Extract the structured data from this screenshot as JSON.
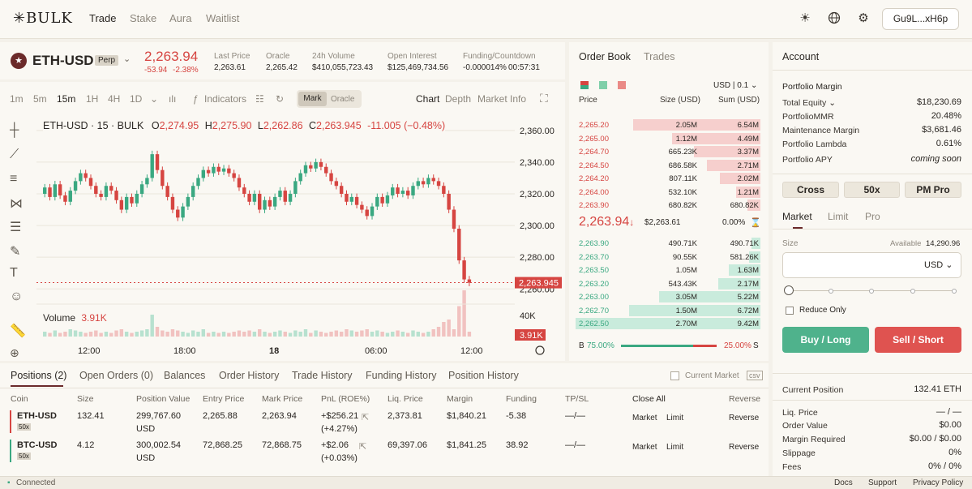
{
  "brand": {
    "logo": "✳BULK"
  },
  "nav": {
    "items": [
      "Trade",
      "Stake",
      "Aura",
      "Waitlist"
    ]
  },
  "header": {
    "wallet": "Gu9L...xH6p"
  },
  "market": {
    "symbol": "ETH-USD",
    "type": "Perp",
    "price": "2,263.94",
    "change": "-53.94",
    "change_pct": "-2.38%",
    "stats": [
      {
        "label": "Last Price",
        "value": "2,263.61"
      },
      {
        "label": "Oracle",
        "value": "2,265.42"
      },
      {
        "label": "24h Volume",
        "value": "$410,055,723.43"
      },
      {
        "label": "Open Interest",
        "value": "$125,469,734.56"
      },
      {
        "label": "Funding/Countdown",
        "value": "-0.000014%",
        "value2": "00:57:31"
      }
    ]
  },
  "chart_toolbar": {
    "timeframes": [
      "1m",
      "5m",
      "15m",
      "1H",
      "4H",
      "1D"
    ],
    "indicators": "Indicators",
    "toggle": [
      "Mark",
      "Oracle"
    ],
    "views": [
      "Chart",
      "Depth",
      "Market Info"
    ]
  },
  "chart_data": {
    "type": "candlestick",
    "title": "ETH-USD · 15 · BULK",
    "ohlc": {
      "O": "2,274.95",
      "H": "2,275.90",
      "L": "2,262.86",
      "C": "2,263.945",
      "chg": "-11.005 (−0.48%)"
    },
    "y_ticks": [
      "2,360.00",
      "2,340.00",
      "2,320.00",
      "2,300.00",
      "2,280.00",
      "2,260.00"
    ],
    "x_ticks": [
      "12:00",
      "18:00",
      "18",
      "06:00",
      "12:00"
    ],
    "ylim": [
      2254,
      2364
    ],
    "current_price": "2,263.945",
    "volume_label": "Volume",
    "volume_value": "3.91K",
    "volume_axis": "40K",
    "volume_badge": "3.91K",
    "candles": [
      [
        2320,
        2324
      ],
      [
        2324,
        2318
      ],
      [
        2318,
        2326
      ],
      [
        2326,
        2319
      ],
      [
        2319,
        2315
      ],
      [
        2315,
        2322
      ],
      [
        2322,
        2328
      ],
      [
        2328,
        2333
      ],
      [
        2333,
        2330
      ],
      [
        2330,
        2325
      ],
      [
        2325,
        2320
      ],
      [
        2320,
        2318
      ],
      [
        2318,
        2325
      ],
      [
        2325,
        2322
      ],
      [
        2322,
        2316
      ],
      [
        2316,
        2310
      ],
      [
        2310,
        2318
      ],
      [
        2318,
        2314
      ],
      [
        2314,
        2320
      ],
      [
        2320,
        2326
      ],
      [
        2326,
        2330
      ],
      [
        2330,
        2345
      ],
      [
        2345,
        2335
      ],
      [
        2335,
        2325
      ],
      [
        2325,
        2318
      ],
      [
        2318,
        2310
      ],
      [
        2310,
        2305
      ],
      [
        2305,
        2312
      ],
      [
        2312,
        2318
      ],
      [
        2318,
        2325
      ],
      [
        2325,
        2330
      ],
      [
        2330,
        2335
      ],
      [
        2335,
        2333
      ],
      [
        2333,
        2337
      ],
      [
        2337,
        2334
      ],
      [
        2334,
        2336
      ],
      [
        2336,
        2333
      ],
      [
        2333,
        2330
      ],
      [
        2330,
        2324
      ],
      [
        2324,
        2320
      ],
      [
        2320,
        2315
      ],
      [
        2315,
        2320
      ],
      [
        2320,
        2310
      ],
      [
        2310,
        2316
      ],
      [
        2316,
        2312
      ],
      [
        2312,
        2318
      ],
      [
        2318,
        2322
      ],
      [
        2322,
        2315
      ],
      [
        2315,
        2320
      ],
      [
        2320,
        2328
      ],
      [
        2328,
        2333
      ],
      [
        2333,
        2338
      ],
      [
        2338,
        2336
      ],
      [
        2336,
        2340
      ],
      [
        2340,
        2337
      ],
      [
        2337,
        2333
      ],
      [
        2333,
        2328
      ],
      [
        2328,
        2325
      ],
      [
        2325,
        2320
      ],
      [
        2320,
        2315
      ],
      [
        2315,
        2318
      ],
      [
        2318,
        2313
      ],
      [
        2313,
        2310
      ],
      [
        2310,
        2306
      ],
      [
        2306,
        2312
      ],
      [
        2312,
        2318
      ],
      [
        2318,
        2314
      ],
      [
        2314,
        2319
      ],
      [
        2319,
        2324
      ],
      [
        2324,
        2320
      ],
      [
        2320,
        2322
      ],
      [
        2322,
        2319
      ],
      [
        2319,
        2325
      ],
      [
        2325,
        2328
      ],
      [
        2328,
        2326
      ],
      [
        2326,
        2330
      ],
      [
        2330,
        2328
      ],
      [
        2328,
        2325
      ],
      [
        2325,
        2320
      ],
      [
        2320,
        2310
      ],
      [
        2310,
        2298
      ],
      [
        2298,
        2278
      ],
      [
        2278,
        2266
      ],
      [
        2266,
        2263.9
      ]
    ],
    "volumes": [
      4,
      3,
      5,
      3,
      4,
      6,
      5,
      4,
      3,
      4,
      5,
      3,
      4,
      3,
      5,
      6,
      4,
      3,
      4,
      5,
      6,
      18,
      8,
      5,
      4,
      6,
      5,
      4,
      3,
      5,
      4,
      6,
      3,
      4,
      3,
      4,
      3,
      4,
      5,
      4,
      5,
      4,
      6,
      4,
      3,
      4,
      5,
      4,
      3,
      5,
      4,
      6,
      3,
      5,
      4,
      3,
      4,
      5,
      4,
      6,
      5,
      4,
      5,
      6,
      4,
      5,
      4,
      3,
      4,
      5,
      4,
      3,
      5,
      4,
      3,
      4,
      6,
      8,
      12,
      14,
      6,
      25,
      38,
      4
    ]
  },
  "orderbook": {
    "tabs": [
      "Order Book",
      "Trades"
    ],
    "unit": "USD",
    "tick": "0.1",
    "headers": [
      "Price",
      "Size (USD)",
      "Sum (USD)"
    ],
    "asks": [
      {
        "price": "2,265.20",
        "size": "2.05M",
        "sum": "6.54M",
        "depth": 0.69
      },
      {
        "price": "2,265.00",
        "size": "1.12M",
        "sum": "4.49M",
        "depth": 0.48
      },
      {
        "price": "2,264.70",
        "size": "665.23K",
        "sum": "3.37M",
        "depth": 0.36
      },
      {
        "price": "2,264.50",
        "size": "686.58K",
        "sum": "2.71M",
        "depth": 0.29
      },
      {
        "price": "2,264.20",
        "size": "807.11K",
        "sum": "2.02M",
        "depth": 0.22
      },
      {
        "price": "2,264.00",
        "size": "532.10K",
        "sum": "1.21M",
        "depth": 0.13
      },
      {
        "price": "2,263.90",
        "size": "680.82K",
        "sum": "680.82K",
        "depth": 0.07
      }
    ],
    "mid": {
      "price": "2,263.94",
      "arrow": "↓",
      "sub": "$2,263.61",
      "spread": "0.00%"
    },
    "bids": [
      {
        "price": "2,263.90",
        "size": "490.71K",
        "sum": "490.71K",
        "depth": 0.05
      },
      {
        "price": "2,263.70",
        "size": "90.55K",
        "sum": "581.26K",
        "depth": 0.06
      },
      {
        "price": "2,263.50",
        "size": "1.05M",
        "sum": "1.63M",
        "depth": 0.17
      },
      {
        "price": "2,263.20",
        "size": "543.43K",
        "sum": "2.17M",
        "depth": 0.23
      },
      {
        "price": "2,263.00",
        "size": "3.05M",
        "sum": "5.22M",
        "depth": 0.55
      },
      {
        "price": "2,262.70",
        "size": "1.50M",
        "sum": "6.72M",
        "depth": 0.71
      },
      {
        "price": "2,262.50",
        "size": "2.70M",
        "sum": "9.42M",
        "depth": 1.0
      }
    ],
    "ratio": {
      "b": "B",
      "b_pct": "75.00%",
      "s_pct": "25.00%",
      "s": "S",
      "b_fill": 0.75
    }
  },
  "account": {
    "title": "Account",
    "section": "Portfolio Margin",
    "rows": [
      {
        "label": "Total Equity",
        "value": "$18,230.69"
      },
      {
        "label": "PortfolioMMR",
        "value": "20.48%"
      },
      {
        "label": "Maintenance Margin",
        "value": "$3,681.46"
      },
      {
        "label": "Portfolio Lambda",
        "value": "0.61%"
      },
      {
        "label": "Portfolio APY",
        "value": "coming soon"
      }
    ],
    "modes": [
      "Cross",
      "50x",
      "PM Pro"
    ],
    "order_tabs": [
      "Market",
      "Limit",
      "Pro"
    ],
    "size_label": "Size",
    "available_label": "Available",
    "available": "14,290.96",
    "size_unit": "USD",
    "size_value": "",
    "slider_pct": 0,
    "reduce_only": "Reduce Only",
    "buy": "Buy / Long",
    "sell": "Sell / Short",
    "position_rows": [
      {
        "label": "Current Position",
        "value": "132.41 ETH"
      },
      {
        "label": "Liq. Price",
        "value": "— / —"
      },
      {
        "label": "Order Value",
        "value": "$0.00"
      },
      {
        "label": "Margin Required",
        "value": "$0.00 / $0.00"
      },
      {
        "label": "Slippage",
        "value": "0%"
      },
      {
        "label": "Fees",
        "value": "0% / 0%"
      }
    ]
  },
  "positions": {
    "tabs": [
      "Positions (2)",
      "Open Orders (0)",
      "Balances",
      "Order History",
      "Trade History",
      "Funding History",
      "Position History"
    ],
    "current_market": "Current Market",
    "headers": [
      "Coin",
      "Size",
      "Position Value",
      "Entry Price",
      "Mark Price",
      "PnL (ROE%)",
      "Liq. Price",
      "Margin",
      "Funding",
      "TP/SL",
      "Close All",
      "Reverse"
    ],
    "rows": [
      {
        "coin": "ETH-USD",
        "lev": "50x",
        "size": "132.41",
        "value": "299,767.60",
        "value_unit": "USD",
        "entry": "2,265.88",
        "mark": "2,263.94",
        "pnl": "+$256.21",
        "roe": "(+4.27%)",
        "liq": "2,373.81",
        "margin": "$1,840.21",
        "funding": "-5.38",
        "tpsl": "—/—",
        "market": "Market",
        "limit": "Limit",
        "reverse": "Reverse"
      },
      {
        "coin": "BTC-USD",
        "lev": "50x",
        "size": "4.12",
        "value": "300,002.54",
        "value_unit": "USD",
        "entry": "72,868.25",
        "mark": "72,868.75",
        "pnl": "+$2.06",
        "roe": "(+0.03%)",
        "liq": "69,397.06",
        "margin": "$1,841.25",
        "funding": "38.92",
        "tpsl": "—/—",
        "market": "Market",
        "limit": "Limit",
        "reverse": "Reverse"
      }
    ]
  },
  "footer": {
    "status": "Connected",
    "links": [
      "Docs",
      "Support",
      "Privacy Policy"
    ]
  },
  "colors": {
    "red": "#d64541",
    "green": "#3aa881"
  }
}
